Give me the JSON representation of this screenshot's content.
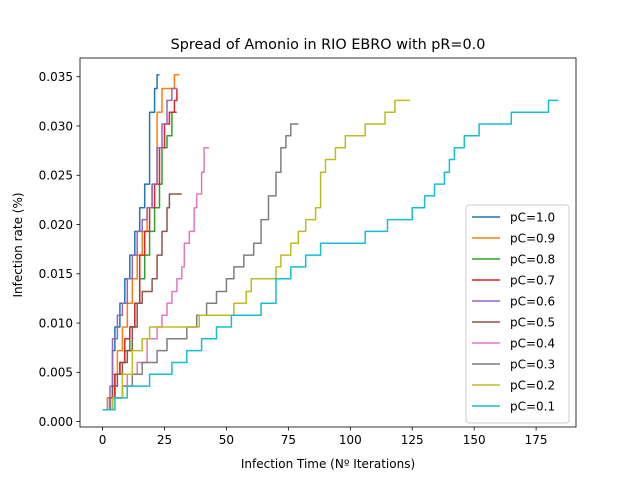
{
  "chart_data": {
    "type": "line",
    "title": "Spread of Amonio in RIO EBRO with pR=0.0",
    "xlabel": "Infection Time (Nº Iterations)",
    "ylabel": "Infection rate (%)",
    "xlim": [
      -9.1,
      191.1
    ],
    "ylim": [
      -0.00055,
      0.0369
    ],
    "xticks": [
      0,
      25,
      50,
      75,
      100,
      125,
      150,
      175
    ],
    "yticks": [
      0.0,
      0.005,
      0.01,
      0.015,
      0.02,
      0.025,
      0.03,
      0.035
    ],
    "ytick_labels": [
      "0.000",
      "0.005",
      "0.010",
      "0.015",
      "0.020",
      "0.025",
      "0.030",
      "0.035"
    ],
    "grid": false,
    "legend_position": "lower right",
    "series": [
      {
        "name": "pC=1.0",
        "color": "#1f77b4",
        "points": [
          [
            0,
            0.0012
          ],
          [
            2,
            0.0024
          ],
          [
            4,
            0.0072
          ],
          [
            5,
            0.0096
          ],
          [
            7,
            0.012
          ],
          [
            9,
            0.0145
          ],
          [
            11,
            0.0169
          ],
          [
            13,
            0.0193
          ],
          [
            15,
            0.0217
          ],
          [
            17,
            0.0241
          ],
          [
            19,
            0.0314
          ],
          [
            21,
            0.0338
          ],
          [
            22,
            0.0352
          ],
          [
            23,
            0.0352
          ]
        ]
      },
      {
        "name": "pC=0.9",
        "color": "#ff7f0e",
        "points": [
          [
            0,
            0.0012
          ],
          [
            2,
            0.0024
          ],
          [
            4,
            0.0048
          ],
          [
            6,
            0.0072
          ],
          [
            8,
            0.0096
          ],
          [
            10,
            0.012
          ],
          [
            12,
            0.0145
          ],
          [
            14,
            0.0169
          ],
          [
            16,
            0.0193
          ],
          [
            18,
            0.0217
          ],
          [
            20,
            0.0241
          ],
          [
            22,
            0.0314
          ],
          [
            24,
            0.0338
          ],
          [
            27,
            0.0338
          ],
          [
            29,
            0.0352
          ],
          [
            31,
            0.0352
          ]
        ]
      },
      {
        "name": "pC=0.8",
        "color": "#2ca02c",
        "points": [
          [
            0,
            0.0012
          ],
          [
            3,
            0.0024
          ],
          [
            5,
            0.0048
          ],
          [
            7,
            0.006
          ],
          [
            9,
            0.0072
          ],
          [
            11,
            0.0096
          ],
          [
            13,
            0.012
          ],
          [
            15,
            0.0145
          ],
          [
            17,
            0.0169
          ],
          [
            19,
            0.0193
          ],
          [
            21,
            0.0217
          ],
          [
            23,
            0.0241
          ],
          [
            24,
            0.0278
          ],
          [
            26,
            0.029
          ],
          [
            28,
            0.0314
          ],
          [
            30,
            0.0314
          ]
        ]
      },
      {
        "name": "pC=0.7",
        "color": "#d62728",
        "points": [
          [
            0,
            0.0012
          ],
          [
            3,
            0.0024
          ],
          [
            5,
            0.0048
          ],
          [
            7,
            0.006
          ],
          [
            9,
            0.0084
          ],
          [
            11,
            0.0096
          ],
          [
            13,
            0.012
          ],
          [
            15,
            0.0169
          ],
          [
            17,
            0.0193
          ],
          [
            19,
            0.0217
          ],
          [
            21,
            0.0241
          ],
          [
            23,
            0.0278
          ],
          [
            25,
            0.0302
          ],
          [
            27,
            0.0314
          ],
          [
            29,
            0.0326
          ],
          [
            30,
            0.0338
          ]
        ]
      },
      {
        "name": "pC=0.6",
        "color": "#9467bd",
        "points": [
          [
            0,
            0.0012
          ],
          [
            3,
            0.0036
          ],
          [
            4,
            0.0084
          ],
          [
            6,
            0.0108
          ],
          [
            8,
            0.012
          ],
          [
            10,
            0.0145
          ],
          [
            12,
            0.0169
          ],
          [
            14,
            0.0193
          ],
          [
            16,
            0.0205
          ],
          [
            18,
            0.0217
          ],
          [
            20,
            0.0241
          ],
          [
            22,
            0.0278
          ],
          [
            24,
            0.0302
          ],
          [
            26,
            0.0326
          ],
          [
            28,
            0.0338
          ],
          [
            30,
            0.0338
          ]
        ]
      },
      {
        "name": "pC=0.5",
        "color": "#8c564b",
        "points": [
          [
            0,
            0.0012
          ],
          [
            4,
            0.0036
          ],
          [
            6,
            0.0048
          ],
          [
            8,
            0.006
          ],
          [
            10,
            0.0072
          ],
          [
            12,
            0.0096
          ],
          [
            14,
            0.012
          ],
          [
            16,
            0.0132
          ],
          [
            18,
            0.0132
          ],
          [
            20,
            0.0145
          ],
          [
            22,
            0.0169
          ],
          [
            24,
            0.0193
          ],
          [
            26,
            0.0217
          ],
          [
            27,
            0.0231
          ],
          [
            30,
            0.0231
          ],
          [
            32,
            0.0231
          ]
        ]
      },
      {
        "name": "pC=0.4",
        "color": "#e377c2",
        "points": [
          [
            0,
            0.0012
          ],
          [
            4,
            0.0024
          ],
          [
            8,
            0.0036
          ],
          [
            10,
            0.0048
          ],
          [
            14,
            0.006
          ],
          [
            18,
            0.0084
          ],
          [
            22,
            0.0096
          ],
          [
            24,
            0.0108
          ],
          [
            26,
            0.012
          ],
          [
            28,
            0.0132
          ],
          [
            30,
            0.0145
          ],
          [
            32,
            0.0157
          ],
          [
            33,
            0.0181
          ],
          [
            35,
            0.0193
          ],
          [
            37,
            0.0217
          ],
          [
            38,
            0.0231
          ],
          [
            40,
            0.0253
          ],
          [
            41,
            0.0278
          ],
          [
            43,
            0.0278
          ]
        ]
      },
      {
        "name": "pC=0.3",
        "color": "#7f7f7f",
        "points": [
          [
            0,
            0.0012
          ],
          [
            4,
            0.0024
          ],
          [
            8,
            0.0036
          ],
          [
            12,
            0.0048
          ],
          [
            16,
            0.006
          ],
          [
            22,
            0.0072
          ],
          [
            26,
            0.0084
          ],
          [
            34,
            0.0096
          ],
          [
            38,
            0.0108
          ],
          [
            42,
            0.012
          ],
          [
            46,
            0.0132
          ],
          [
            50,
            0.0145
          ],
          [
            53,
            0.0157
          ],
          [
            57,
            0.0169
          ],
          [
            61,
            0.0181
          ],
          [
            64,
            0.0205
          ],
          [
            67,
            0.0229
          ],
          [
            70,
            0.0253
          ],
          [
            72,
            0.0278
          ],
          [
            74,
            0.029
          ],
          [
            76,
            0.0302
          ],
          [
            79,
            0.0302
          ]
        ]
      },
      {
        "name": "pC=0.2",
        "color": "#bcbd22",
        "points": [
          [
            0,
            0.0012
          ],
          [
            4,
            0.0024
          ],
          [
            8,
            0.0048
          ],
          [
            12,
            0.0072
          ],
          [
            16,
            0.0084
          ],
          [
            19,
            0.0096
          ],
          [
            36,
            0.0096
          ],
          [
            39,
            0.0108
          ],
          [
            50,
            0.0108
          ],
          [
            53,
            0.012
          ],
          [
            58,
            0.0132
          ],
          [
            60,
            0.0145
          ],
          [
            70,
            0.0157
          ],
          [
            72,
            0.0169
          ],
          [
            76,
            0.0181
          ],
          [
            79,
            0.0193
          ],
          [
            82,
            0.0205
          ],
          [
            86,
            0.0217
          ],
          [
            88,
            0.0253
          ],
          [
            90,
            0.0266
          ],
          [
            94,
            0.0278
          ],
          [
            98,
            0.029
          ],
          [
            106,
            0.0302
          ],
          [
            114,
            0.0314
          ],
          [
            118,
            0.0326
          ],
          [
            124,
            0.0326
          ]
        ]
      },
      {
        "name": "pC=0.1",
        "color": "#17becf",
        "points": [
          [
            0,
            0.0012
          ],
          [
            5,
            0.0024
          ],
          [
            10,
            0.0036
          ],
          [
            19,
            0.0048
          ],
          [
            28,
            0.006
          ],
          [
            34,
            0.0072
          ],
          [
            40,
            0.0084
          ],
          [
            46,
            0.0096
          ],
          [
            52,
            0.0108
          ],
          [
            64,
            0.012
          ],
          [
            70,
            0.0145
          ],
          [
            76,
            0.0157
          ],
          [
            82,
            0.0169
          ],
          [
            88,
            0.0181
          ],
          [
            106,
            0.0193
          ],
          [
            115,
            0.0205
          ],
          [
            125,
            0.0217
          ],
          [
            130,
            0.0229
          ],
          [
            134,
            0.0241
          ],
          [
            138,
            0.0253
          ],
          [
            140,
            0.0266
          ],
          [
            142,
            0.0278
          ],
          [
            146,
            0.029
          ],
          [
            152,
            0.0302
          ],
          [
            165,
            0.0314
          ],
          [
            180,
            0.0326
          ],
          [
            184,
            0.0326
          ]
        ]
      }
    ]
  }
}
